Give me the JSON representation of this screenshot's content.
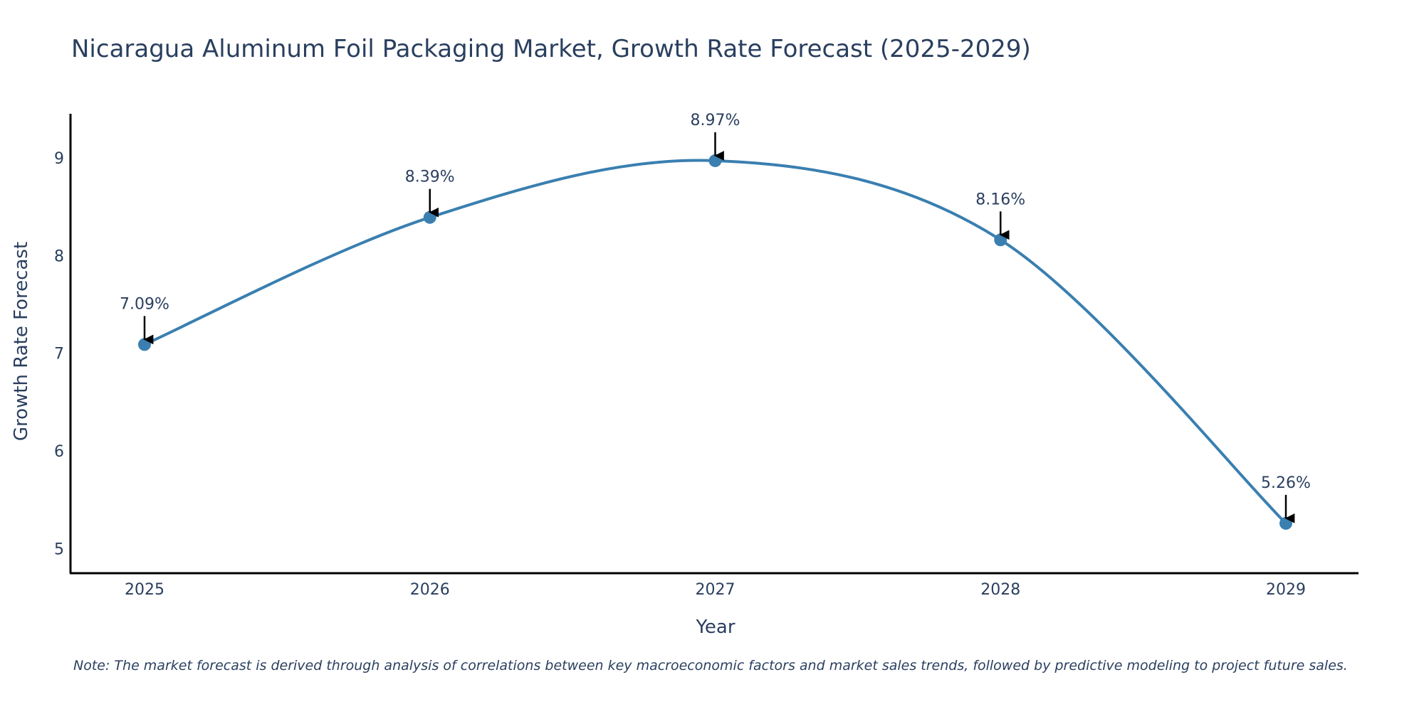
{
  "chart_data": {
    "type": "line",
    "title": "Nicaragua Aluminum Foil Packaging Market, Growth Rate Forecast (2025-2029)",
    "xlabel": "Year",
    "ylabel": "Growth Rate Forecast",
    "categories": [
      "2025",
      "2026",
      "2027",
      "2028",
      "2029"
    ],
    "series": [
      {
        "name": "Growth Rate Forecast",
        "values": [
          7.09,
          8.39,
          8.97,
          8.16,
          5.26
        ],
        "data_labels": [
          "7.09%",
          "8.39%",
          "8.97%",
          "8.16%",
          "5.26%"
        ]
      }
    ],
    "yticks": [
      5,
      6,
      7,
      8,
      9
    ],
    "ylim": [
      4.75,
      9.45
    ],
    "grid": false,
    "line_shape": "spline",
    "line_color": "#3a7fb0",
    "marker_color": "#3a7fb0",
    "annotation_arrow_color": "#000000",
    "text_color": "#2a3f5f",
    "axis_color": "#000000",
    "note": "Note: The market forecast is derived through analysis of correlations between key macroeconomic factors and market sales trends, followed by predictive modeling to project future sales."
  }
}
